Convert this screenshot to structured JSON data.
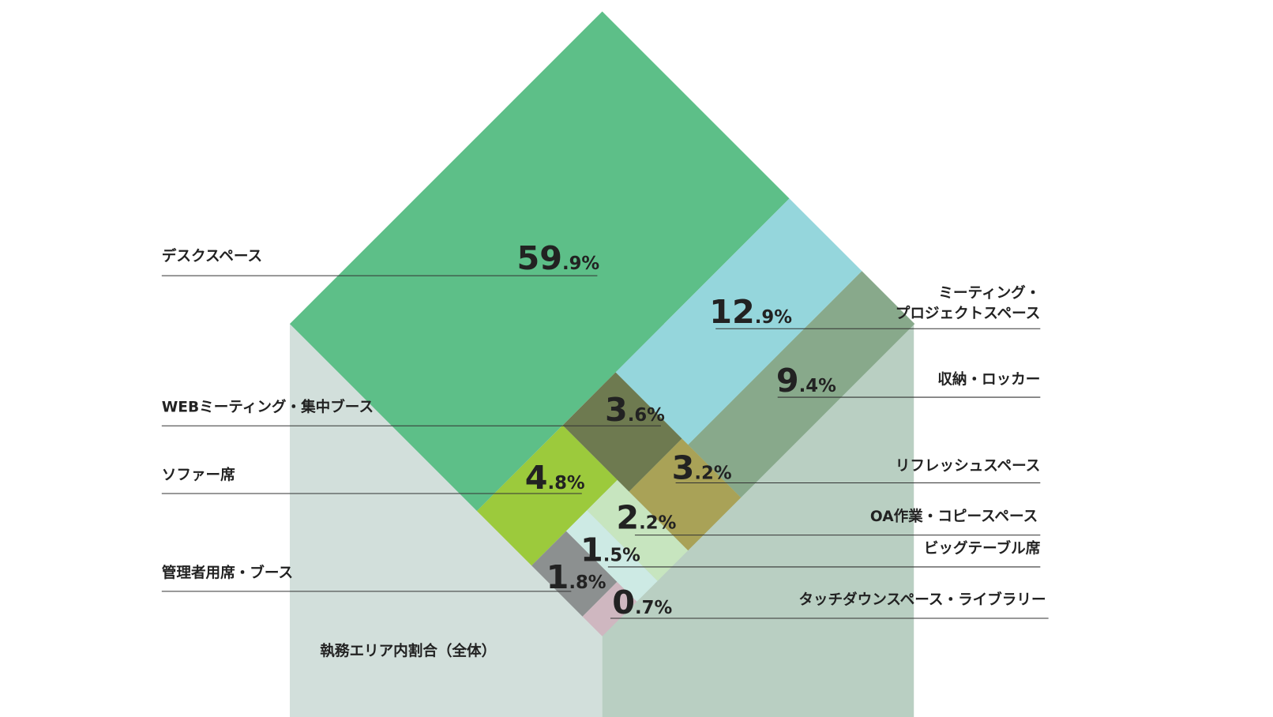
{
  "chart_data": {
    "type": "rotated-treemap",
    "title": "執務エリア内割合（全体）",
    "categories": [
      "デスクスペース",
      "ミーティング・\nプロジェクトスペース",
      "収納・ロッカー",
      "WEBミーティング・集中ブース",
      "リフレッシュスペース",
      "ソファー席",
      "OA作業・コピースペース",
      "ビッグテーブル席",
      "管理者用席・ブース",
      "タッチダウンスペース・ライブラリー"
    ],
    "values": [
      59.9,
      12.9,
      9.4,
      3.6,
      3.2,
      4.8,
      2.2,
      1.5,
      1.8,
      0.7
    ],
    "value_labels": [
      "59.9%",
      "12.9%",
      "9.4%",
      "3.6%",
      "3.2%",
      "4.8%",
      "2.2%",
      "1.5%",
      "1.8%",
      "0.7%"
    ],
    "colors": [
      "#5dbf88",
      "#95d6dc",
      "#88a98b",
      "#6e7a50",
      "#a9a257",
      "#9cca3c",
      "#c7e5bf",
      "#cdeae4",
      "#8c9090",
      "#cfb7c0"
    ]
  }
}
